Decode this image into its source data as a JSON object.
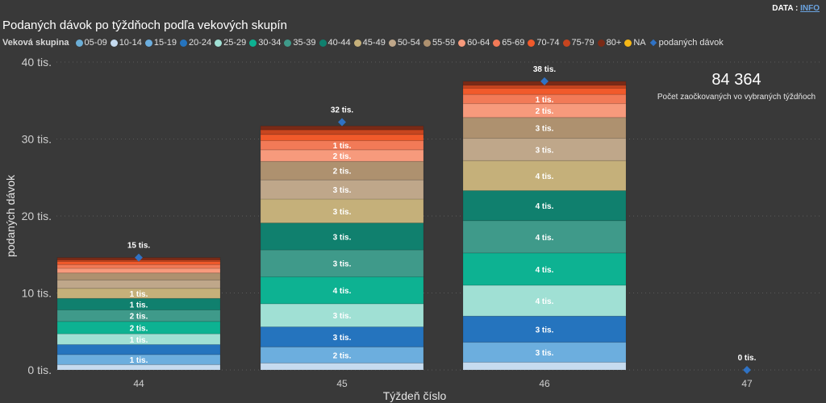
{
  "header": {
    "title": "Podaných dávok po týždňoch podľa vekových skupín",
    "data_label": "DATA : ",
    "info_link": "INFO"
  },
  "kpi": {
    "value": "84 364",
    "label": "Počet zaočkovaných vo vybraných týždňoch"
  },
  "legend": {
    "title": "Veková skupina",
    "line_item": "podaných dávok"
  },
  "chart_data": {
    "type": "bar",
    "stacked": true,
    "title": "Podaných dávok po týždňoch podľa vekových skupín",
    "xlabel": "Týždeň číslo",
    "ylabel": "podaných dávok",
    "ylim": [
      0,
      40000
    ],
    "yticks": [
      0,
      10000,
      20000,
      30000,
      40000
    ],
    "ytick_labels": [
      "0 tis.",
      "10 tis.",
      "20 tis.",
      "30 tis.",
      "40 tis."
    ],
    "grid": true,
    "legend_position": "top-left",
    "categories": [
      "44",
      "45",
      "46",
      "47"
    ],
    "series": [
      {
        "name": "05-09",
        "color": "#6baed6",
        "values": [
          0,
          0,
          0,
          0
        ]
      },
      {
        "name": "10-14",
        "color": "#c6dbef",
        "values": [
          700,
          900,
          1000,
          0
        ]
      },
      {
        "name": "15-19",
        "color": "#6caede",
        "values": [
          1300,
          2100,
          2600,
          0
        ],
        "labels": [
          "1 tis.",
          "2 tis.",
          "3 tis.",
          ""
        ]
      },
      {
        "name": "20-24",
        "color": "#2574be",
        "values": [
          1300,
          2600,
          3400,
          0
        ],
        "labels": [
          "",
          "3 tis.",
          "3 tis.",
          ""
        ]
      },
      {
        "name": "25-29",
        "color": "#a0e0d4",
        "values": [
          1400,
          3000,
          4000,
          0
        ],
        "labels": [
          "1 tis.",
          "3 tis.",
          "4 tis.",
          ""
        ]
      },
      {
        "name": "30-34",
        "color": "#0db292",
        "values": [
          1600,
          3500,
          4200,
          0
        ],
        "labels": [
          "2 tis.",
          "4 tis.",
          "4 tis.",
          ""
        ]
      },
      {
        "name": "35-39",
        "color": "#3f9a8a",
        "values": [
          1500,
          3500,
          4200,
          0
        ],
        "labels": [
          "2 tis.",
          "3 tis.",
          "4 tis.",
          ""
        ]
      },
      {
        "name": "40-44",
        "color": "#10806e",
        "values": [
          1500,
          3500,
          3900,
          0
        ],
        "labels": [
          "1 tis.",
          "3 tis.",
          "4 tis.",
          ""
        ]
      },
      {
        "name": "45-49",
        "color": "#c5b07a",
        "values": [
          1300,
          3100,
          3900,
          0
        ],
        "labels": [
          "1 tis.",
          "3 tis.",
          "4 tis.",
          ""
        ]
      },
      {
        "name": "50-54",
        "color": "#bfa78a",
        "values": [
          1100,
          2500,
          2900,
          0
        ],
        "labels": [
          "",
          "3 tis.",
          "3 tis.",
          ""
        ]
      },
      {
        "name": "55-59",
        "color": "#ae916f",
        "values": [
          900,
          2400,
          2700,
          0
        ],
        "labels": [
          "",
          "2 tis.",
          "3 tis.",
          ""
        ]
      },
      {
        "name": "60-64",
        "color": "#f79a7c",
        "values": [
          600,
          1500,
          1800,
          0
        ],
        "labels": [
          "",
          "2 tis.",
          "2 tis.",
          ""
        ]
      },
      {
        "name": "65-69",
        "color": "#f27a57",
        "values": [
          500,
          1200,
          1200,
          0
        ],
        "labels": [
          "",
          "1 tis.",
          "1 tis.",
          ""
        ]
      },
      {
        "name": "70-74",
        "color": "#f15a2b",
        "values": [
          400,
          800,
          800,
          0
        ]
      },
      {
        "name": "75-79",
        "color": "#c7451f",
        "values": [
          200,
          600,
          400,
          0
        ]
      },
      {
        "name": "80+",
        "color": "#7a2a16",
        "values": [
          300,
          500,
          500,
          0
        ]
      },
      {
        "name": "NA",
        "color": "#f5b717",
        "values": [
          0,
          0,
          0,
          0
        ]
      }
    ],
    "line_series": {
      "name": "podaných dávok",
      "color": "#2f72c4",
      "values": [
        14600,
        32200,
        37500,
        0
      ],
      "labels": [
        "15 tis.",
        "32 tis.",
        "38 tis.",
        "0 tis."
      ]
    }
  }
}
